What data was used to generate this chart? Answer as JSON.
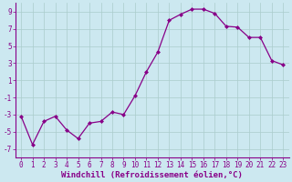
{
  "x": [
    0,
    1,
    2,
    3,
    4,
    5,
    6,
    7,
    8,
    9,
    10,
    11,
    12,
    13,
    14,
    15,
    16,
    17,
    18,
    19,
    20,
    21,
    22,
    23
  ],
  "y": [
    -3.2,
    -6.5,
    -3.8,
    -3.2,
    -4.8,
    -5.8,
    -4.0,
    -3.8,
    -2.7,
    -3.0,
    -0.8,
    2.0,
    4.3,
    8.0,
    8.7,
    9.3,
    9.3,
    8.8,
    7.3,
    7.2,
    6.0,
    6.0,
    3.3,
    2.8
  ],
  "line_color": "#880088",
  "marker": "D",
  "marker_size": 2.0,
  "bg_color": "#cce8f0",
  "grid_color": "#aacccc",
  "xlabel": "Windchill (Refroidissement éolien,°C)",
  "xlim": [
    -0.5,
    23.5
  ],
  "ylim": [
    -8,
    10
  ],
  "yticks": [
    -7,
    -5,
    -3,
    -1,
    1,
    3,
    5,
    7,
    9
  ],
  "xticks": [
    0,
    1,
    2,
    3,
    4,
    5,
    6,
    7,
    8,
    9,
    10,
    11,
    12,
    13,
    14,
    15,
    16,
    17,
    18,
    19,
    20,
    21,
    22,
    23
  ],
  "tick_fontsize": 5.5,
  "label_fontsize": 6.5,
  "linewidth": 0.9
}
